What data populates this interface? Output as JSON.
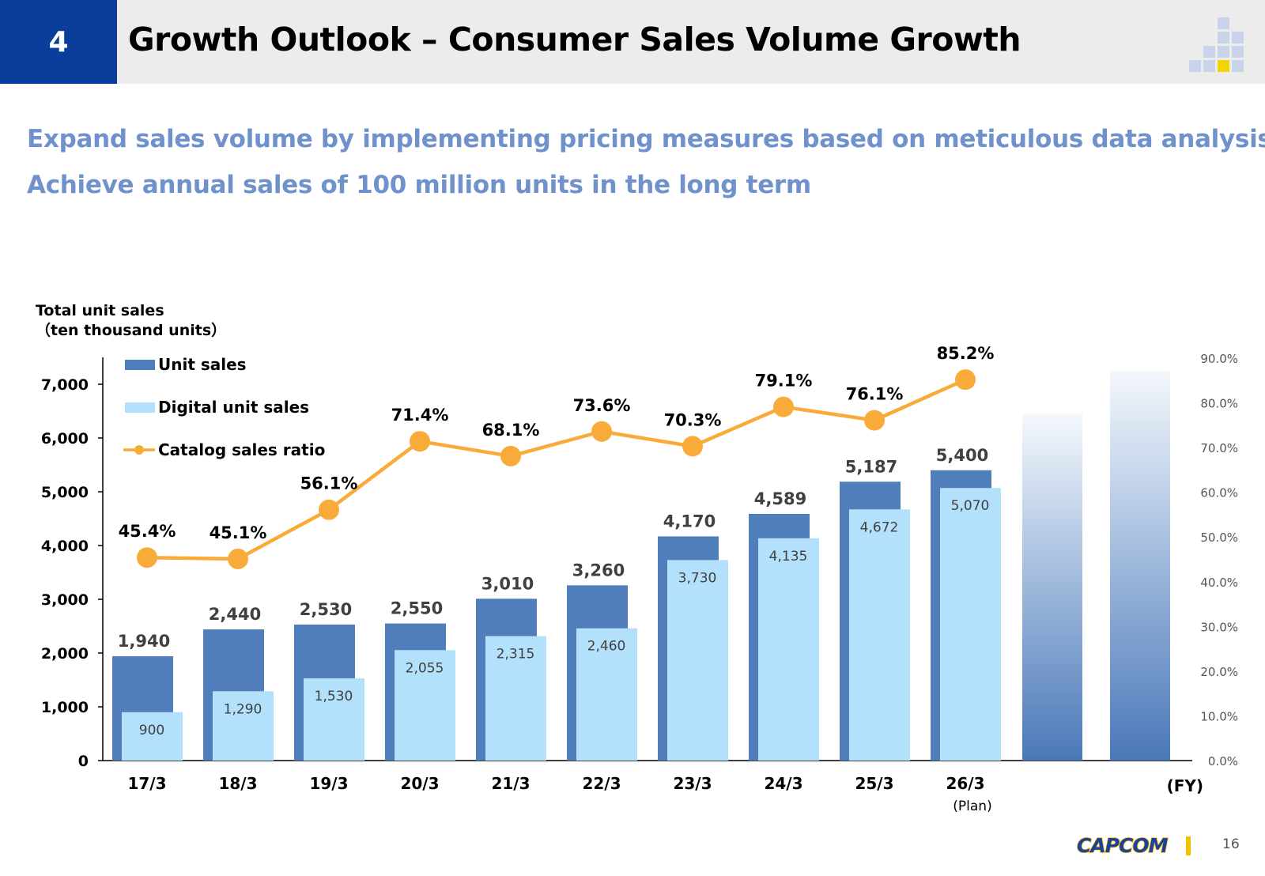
{
  "header": {
    "section_number": "4",
    "title": "Growth Outlook – Consumer Sales Volume Growth"
  },
  "subtitles": [
    "Expand sales volume by implementing pricing measures based on meticulous data analysis",
    "Achieve annual sales of 100 million units in the long term"
  ],
  "footer": {
    "logo": "CAPCOM",
    "page_number": "16"
  },
  "colors": {
    "unit_sales": "#4f7ebb",
    "digital_unit_sales": "#b3e0fb",
    "catalog_ratio": "#f9ab3a",
    "subtitle": "#6f91cc",
    "section_box": "#0b3d9a"
  },
  "chart_data": {
    "type": "bar+line",
    "y_axis_title": [
      "Total unit sales",
      "（ten thousand units）"
    ],
    "x_axis_suffix": "(FY)",
    "categories": [
      "17/3",
      "18/3",
      "19/3",
      "20/3",
      "21/3",
      "22/3",
      "23/3",
      "24/3",
      "25/3",
      "26/3"
    ],
    "category_notes": [
      "",
      "",
      "",
      "",
      "",
      "",
      "",
      "",
      "",
      "(Plan)"
    ],
    "ylim": [
      0,
      7500
    ],
    "y_ticks": [
      0,
      1000,
      2000,
      3000,
      4000,
      5000,
      6000,
      7000
    ],
    "y_tick_labels": [
      "0",
      "1,000",
      "2,000",
      "3,000",
      "4,000",
      "5,000",
      "6,000",
      "7,000"
    ],
    "y2lim": [
      0,
      90
    ],
    "y2_ticks": [
      0,
      10,
      20,
      30,
      40,
      50,
      60,
      70,
      80,
      90
    ],
    "y2_tick_labels": [
      "0.0%",
      "10.0%",
      "20.0%",
      "30.0%",
      "40.0%",
      "50.0%",
      "60.0%",
      "70.0%",
      "80.0%",
      "90.0%"
    ],
    "series": [
      {
        "name": "Unit sales",
        "kind": "bar",
        "values": [
          1940,
          2440,
          2530,
          2550,
          3010,
          3260,
          4170,
          4589,
          5187,
          5400
        ],
        "labels": [
          "1,940",
          "2,440",
          "2,530",
          "2,550",
          "3,010",
          "3,260",
          "4,170",
          "4,589",
          "5,187",
          "5,400"
        ]
      },
      {
        "name": "Digital unit sales",
        "kind": "bar",
        "values": [
          900,
          1290,
          1530,
          2055,
          2315,
          2460,
          3730,
          4135,
          4672,
          5070
        ],
        "labels": [
          "900",
          "1,290",
          "1,530",
          "2,055",
          "2,315",
          "2,460",
          "3,730",
          "4,135",
          "4,672",
          "5,070"
        ]
      },
      {
        "name": "Catalog sales ratio",
        "kind": "line",
        "axis": "right",
        "values": [
          45.4,
          45.1,
          56.1,
          71.4,
          68.1,
          73.6,
          70.3,
          79.1,
          76.1,
          85.2
        ],
        "labels": [
          "45.4%",
          "45.1%",
          "56.1%",
          "71.4%",
          "68.1%",
          "73.6%",
          "70.3%",
          "79.1%",
          "76.1%",
          "85.2%"
        ]
      }
    ],
    "future_bars": [
      6450,
      7250
    ]
  }
}
